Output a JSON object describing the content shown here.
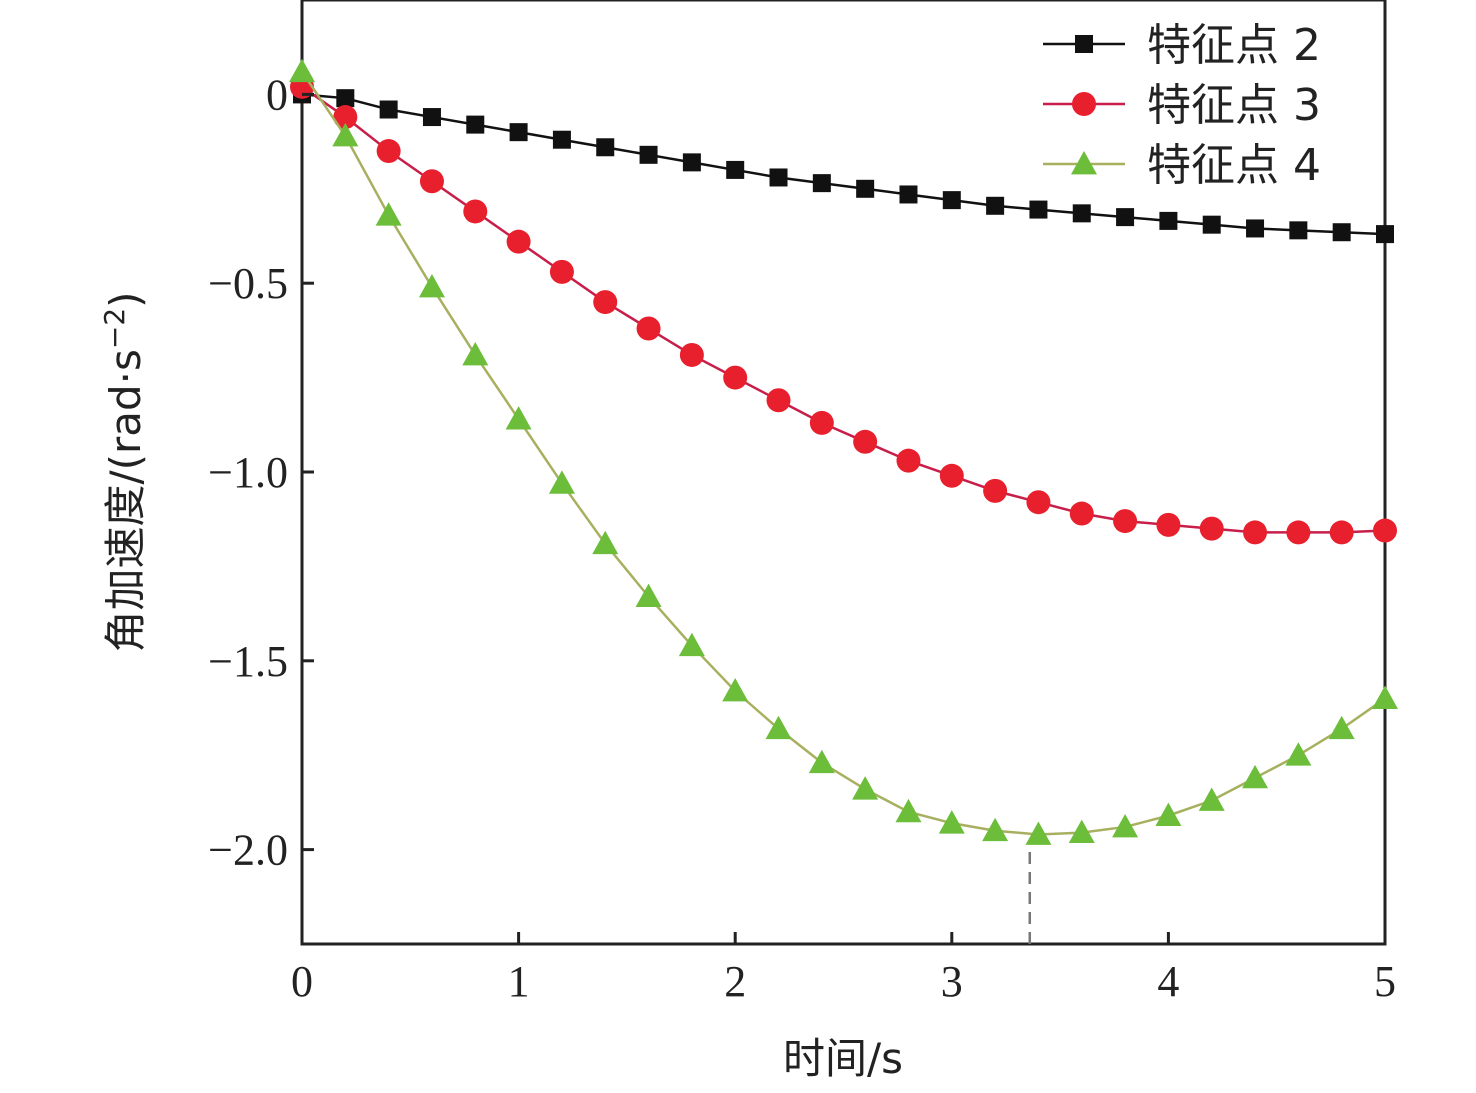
{
  "chart_data": {
    "type": "line",
    "xlabel": "时间/s",
    "ylabel_main": "角加速度/(rad·s",
    "ylabel_sup": "−2",
    "ylabel_close": ")",
    "xlim": [
      0,
      5
    ],
    "ylim": [
      -2.25,
      0.25
    ],
    "xticks": [
      {
        "value": 0,
        "label": "0"
      },
      {
        "value": 1,
        "label": "1"
      },
      {
        "value": 2,
        "label": "2"
      },
      {
        "value": 3,
        "label": "3"
      },
      {
        "value": 4,
        "label": "4"
      },
      {
        "value": 5,
        "label": "5"
      }
    ],
    "yticks": [
      {
        "value": 0,
        "label": "0"
      },
      {
        "value": -0.5,
        "label": "−0.5"
      },
      {
        "value": -1.0,
        "label": "−1.0"
      },
      {
        "value": -1.5,
        "label": "−1.5"
      },
      {
        "value": -2.0,
        "label": "−2.0"
      }
    ],
    "grid": false,
    "legend_position": "top-right",
    "reference_line": {
      "x": 3.36,
      "style": "dashed",
      "color": "#777777"
    },
    "x": [
      0,
      0.2,
      0.4,
      0.6,
      0.8,
      1.0,
      1.2,
      1.4,
      1.6,
      1.8,
      2.0,
      2.2,
      2.4,
      2.6,
      2.8,
      3.0,
      3.2,
      3.4,
      3.6,
      3.8,
      4.0,
      4.2,
      4.4,
      4.6,
      4.8,
      5.0
    ],
    "series": [
      {
        "name": "特征点 2",
        "color": "#111111",
        "marker": "square",
        "values": [
          0.0,
          -0.01,
          -0.04,
          -0.06,
          -0.08,
          -0.1,
          -0.12,
          -0.14,
          -0.16,
          -0.18,
          -0.2,
          -0.22,
          -0.235,
          -0.25,
          -0.265,
          -0.28,
          -0.295,
          -0.305,
          -0.315,
          -0.325,
          -0.335,
          -0.345,
          -0.355,
          -0.36,
          -0.365,
          -0.37
        ]
      },
      {
        "name": "特征点 3",
        "color": "#e8202e",
        "line_color": "#c81e4a",
        "marker": "circle",
        "values": [
          0.02,
          -0.06,
          -0.15,
          -0.23,
          -0.31,
          -0.39,
          -0.47,
          -0.55,
          -0.62,
          -0.69,
          -0.75,
          -0.81,
          -0.87,
          -0.92,
          -0.97,
          -1.01,
          -1.05,
          -1.08,
          -1.11,
          -1.13,
          -1.14,
          -1.15,
          -1.16,
          -1.16,
          -1.16,
          -1.155
        ]
      },
      {
        "name": "特征点 4",
        "color": "#6cbd3a",
        "line_color": "#a8b060",
        "marker": "triangle",
        "values": [
          0.06,
          -0.11,
          -0.32,
          -0.51,
          -0.69,
          -0.86,
          -1.03,
          -1.19,
          -1.33,
          -1.46,
          -1.58,
          -1.68,
          -1.77,
          -1.84,
          -1.9,
          -1.93,
          -1.95,
          -1.96,
          -1.955,
          -1.94,
          -1.91,
          -1.87,
          -1.81,
          -1.75,
          -1.68,
          -1.6
        ]
      }
    ]
  }
}
